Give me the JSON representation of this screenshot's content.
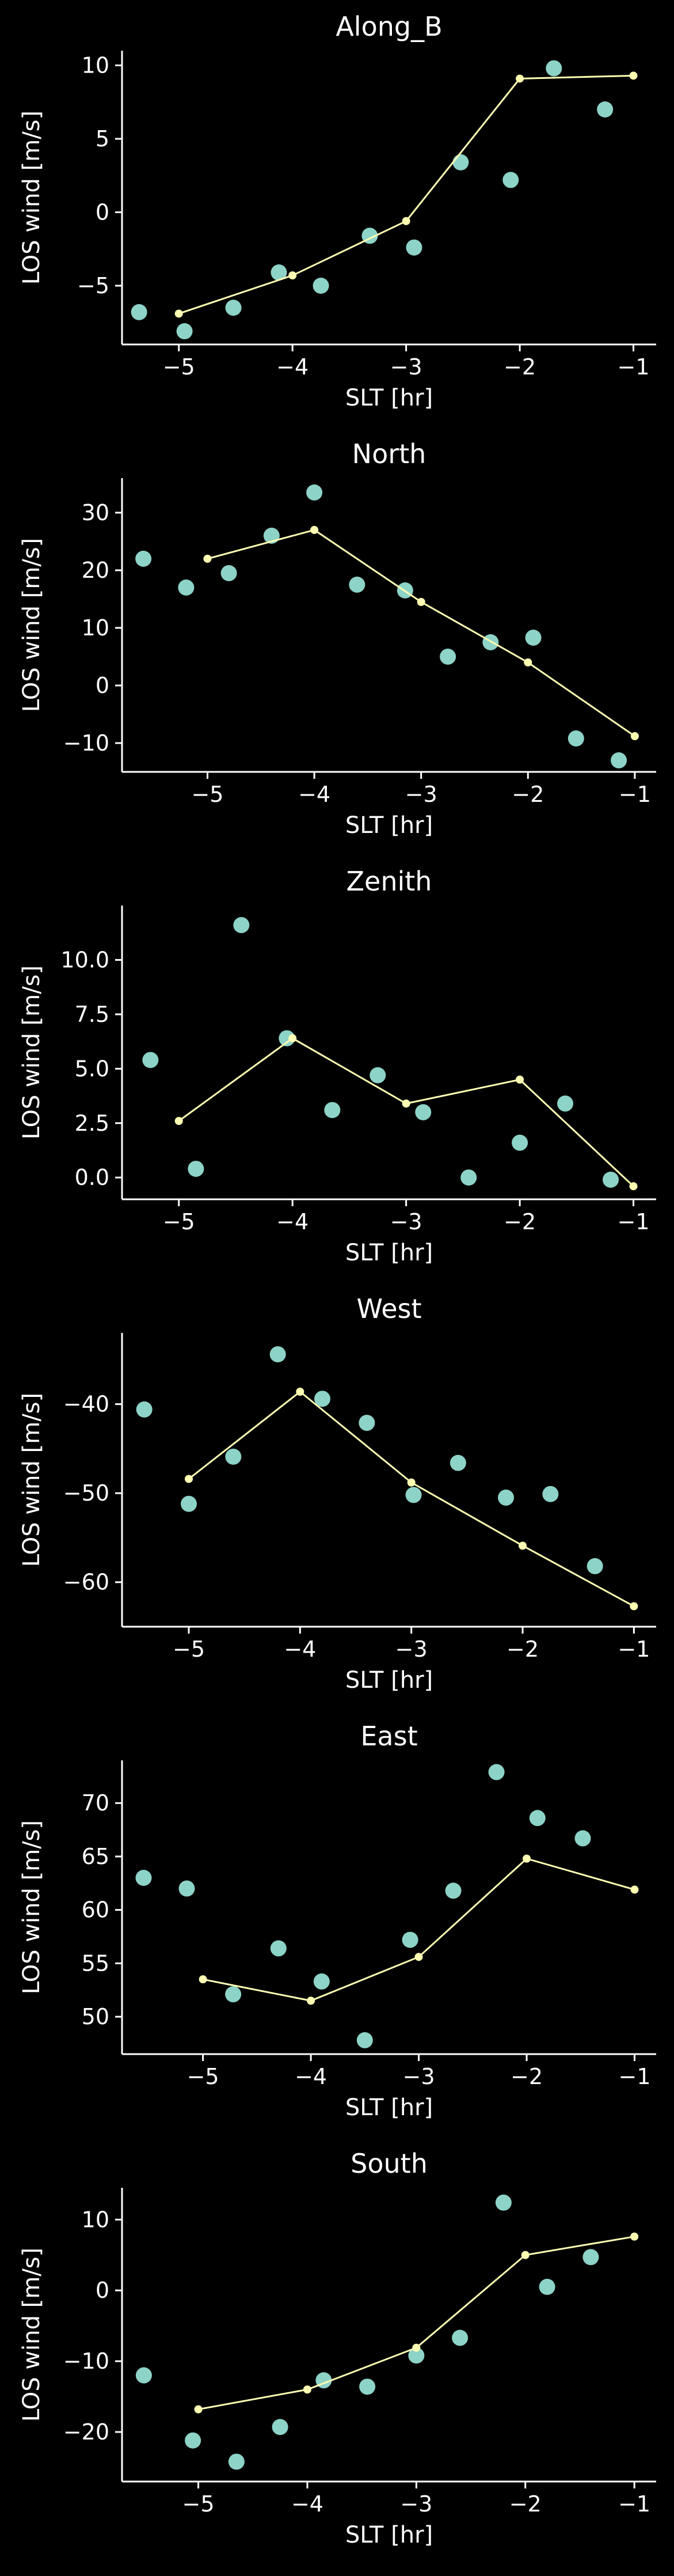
{
  "colors": {
    "background": "#000000",
    "foreground": "#ffffff",
    "scatter": "#8dd3c7",
    "line": "#ffffb3"
  },
  "chart_data": [
    {
      "type": "line",
      "title": "Along_B",
      "xlabel": "SLT [hr]",
      "ylabel": "LOS wind [m/s]",
      "xlim": [
        -5.5,
        -0.8
      ],
      "ylim": [
        -9.0,
        11.0
      ],
      "xticks": [
        -5,
        -4,
        -3,
        -2,
        -1
      ],
      "yticks": [
        -5,
        0,
        5,
        10
      ],
      "xtick_labels": [
        "−5",
        "−4",
        "−3",
        "−2",
        "−1"
      ],
      "ytick_labels": [
        "−5",
        "0",
        "5",
        "10"
      ],
      "grid": false,
      "series": [
        {
          "kind": "scatter",
          "x": [
            -5.35,
            -4.95,
            -4.52,
            -4.12,
            -3.75,
            -3.32,
            -2.93,
            -2.52,
            -2.08,
            -1.7,
            -1.25
          ],
          "y": [
            -6.8,
            -8.1,
            -6.5,
            -4.1,
            -5.0,
            -1.6,
            -2.4,
            3.4,
            2.2,
            9.8,
            7.0
          ]
        },
        {
          "kind": "line",
          "x": [
            -5.0,
            -4.0,
            -3.0,
            -2.0,
            -1.0
          ],
          "y": [
            -6.9,
            -4.3,
            -0.6,
            9.1,
            9.3
          ]
        }
      ]
    },
    {
      "type": "line",
      "title": "North",
      "xlabel": "SLT [hr]",
      "ylabel": "LOS wind [m/s]",
      "xlim": [
        -5.8,
        -0.8
      ],
      "ylim": [
        -15.0,
        36.0
      ],
      "xticks": [
        -5,
        -4,
        -3,
        -2,
        -1
      ],
      "yticks": [
        -10,
        0,
        10,
        20,
        30
      ],
      "xtick_labels": [
        "−5",
        "−4",
        "−3",
        "−2",
        "−1"
      ],
      "ytick_labels": [
        "−10",
        "0",
        "10",
        "20",
        "30"
      ],
      "grid": false,
      "series": [
        {
          "kind": "scatter",
          "x": [
            -5.6,
            -5.2,
            -4.8,
            -4.4,
            -4.0,
            -3.6,
            -3.15,
            -2.75,
            -2.35,
            -1.95,
            -1.55,
            -1.15
          ],
          "y": [
            22.0,
            17.0,
            19.5,
            26.0,
            33.5,
            17.5,
            16.5,
            5.0,
            7.5,
            8.3,
            -9.2,
            -13.0
          ]
        },
        {
          "kind": "line",
          "x": [
            -5.0,
            -4.0,
            -3.0,
            -2.0,
            -1.0
          ],
          "y": [
            22.0,
            27.0,
            14.5,
            4.0,
            -8.8
          ]
        }
      ]
    },
    {
      "type": "line",
      "title": "Zenith",
      "xlabel": "SLT [hr]",
      "ylabel": "LOS wind [m/s]",
      "xlim": [
        -5.5,
        -0.8
      ],
      "ylim": [
        -1.0,
        12.5
      ],
      "xticks": [
        -5,
        -4,
        -3,
        -2,
        -1
      ],
      "yticks": [
        0.0,
        2.5,
        5.0,
        7.5,
        10.0
      ],
      "xtick_labels": [
        "−5",
        "−4",
        "−3",
        "−2",
        "−1"
      ],
      "ytick_labels": [
        "0.0",
        "2.5",
        "5.0",
        "7.5",
        "10.0"
      ],
      "grid": false,
      "series": [
        {
          "kind": "scatter",
          "x": [
            -5.25,
            -4.85,
            -4.45,
            -4.05,
            -3.65,
            -3.25,
            -2.85,
            -2.45,
            -2.0,
            -1.6,
            -1.2
          ],
          "y": [
            5.4,
            0.4,
            11.6,
            6.4,
            3.1,
            4.7,
            3.0,
            0.0,
            1.6,
            3.4,
            -0.1
          ]
        },
        {
          "kind": "line",
          "x": [
            -5.0,
            -4.0,
            -3.0,
            -2.0,
            -1.0
          ],
          "y": [
            2.6,
            6.4,
            3.4,
            4.5,
            -0.4
          ]
        }
      ]
    },
    {
      "type": "line",
      "title": "West",
      "xlabel": "SLT [hr]",
      "ylabel": "LOS wind [m/s]",
      "xlim": [
        -5.6,
        -0.8
      ],
      "ylim": [
        -65.0,
        -32.0
      ],
      "xticks": [
        -5,
        -4,
        -3,
        -2,
        -1
      ],
      "yticks": [
        -60,
        -50,
        -40
      ],
      "xtick_labels": [
        "−5",
        "−4",
        "−3",
        "−2",
        "−1"
      ],
      "ytick_labels": [
        "−60",
        "−50",
        "−40"
      ],
      "grid": false,
      "series": [
        {
          "kind": "scatter",
          "x": [
            -5.4,
            -5.0,
            -4.6,
            -4.2,
            -3.8,
            -3.4,
            -2.98,
            -2.58,
            -2.15,
            -1.75,
            -1.35
          ],
          "y": [
            -40.6,
            -51.2,
            -45.9,
            -34.4,
            -39.4,
            -42.1,
            -50.2,
            -46.6,
            -50.5,
            -50.1,
            -58.2
          ]
        },
        {
          "kind": "line",
          "x": [
            -5.0,
            -4.0,
            -3.0,
            -2.0,
            -1.0
          ],
          "y": [
            -48.4,
            -38.6,
            -48.8,
            -55.9,
            -62.7
          ]
        }
      ]
    },
    {
      "type": "line",
      "title": "East",
      "xlabel": "SLT [hr]",
      "ylabel": "LOS wind [m/s]",
      "xlim": [
        -5.75,
        -0.8
      ],
      "ylim": [
        46.5,
        74.0
      ],
      "xticks": [
        -5,
        -4,
        -3,
        -2,
        -1
      ],
      "yticks": [
        50,
        55,
        60,
        65,
        70
      ],
      "xtick_labels": [
        "−5",
        "−4",
        "−3",
        "−2",
        "−1"
      ],
      "ytick_labels": [
        "50",
        "55",
        "60",
        "65",
        "70"
      ],
      "grid": false,
      "series": [
        {
          "kind": "scatter",
          "x": [
            -5.55,
            -5.15,
            -4.72,
            -4.3,
            -3.9,
            -3.5,
            -3.08,
            -2.68,
            -2.28,
            -1.9,
            -1.48
          ],
          "y": [
            63.0,
            62.0,
            52.1,
            56.4,
            53.3,
            47.8,
            57.2,
            61.8,
            72.9,
            68.6,
            66.7
          ]
        },
        {
          "kind": "line",
          "x": [
            -5.0,
            -4.0,
            -3.0,
            -2.0,
            -1.0
          ],
          "y": [
            53.5,
            51.5,
            55.6,
            64.8,
            61.9
          ]
        }
      ]
    },
    {
      "type": "line",
      "title": "South",
      "xlabel": "SLT [hr]",
      "ylabel": "LOS wind [m/s]",
      "xlim": [
        -5.7,
        -0.8
      ],
      "ylim": [
        -27.0,
        14.5
      ],
      "xticks": [
        -5,
        -4,
        -3,
        -2,
        -1
      ],
      "yticks": [
        -20,
        -10,
        0,
        10
      ],
      "xtick_labels": [
        "−5",
        "−4",
        "−3",
        "−2",
        "−1"
      ],
      "ytick_labels": [
        "−20",
        "−10",
        "0",
        "10"
      ],
      "grid": false,
      "series": [
        {
          "kind": "scatter",
          "x": [
            -5.5,
            -5.05,
            -4.65,
            -4.25,
            -3.85,
            -3.45,
            -3.0,
            -2.6,
            -2.2,
            -1.8,
            -1.4
          ],
          "y": [
            -12.0,
            -21.2,
            -24.2,
            -19.3,
            -12.7,
            -13.6,
            -9.2,
            -6.7,
            12.4,
            0.5,
            4.7
          ]
        },
        {
          "kind": "line",
          "x": [
            -5.0,
            -4.0,
            -3.0,
            -2.0,
            -1.0
          ],
          "y": [
            -16.8,
            -14.0,
            -8.1,
            5.0,
            7.6
          ]
        }
      ]
    }
  ]
}
